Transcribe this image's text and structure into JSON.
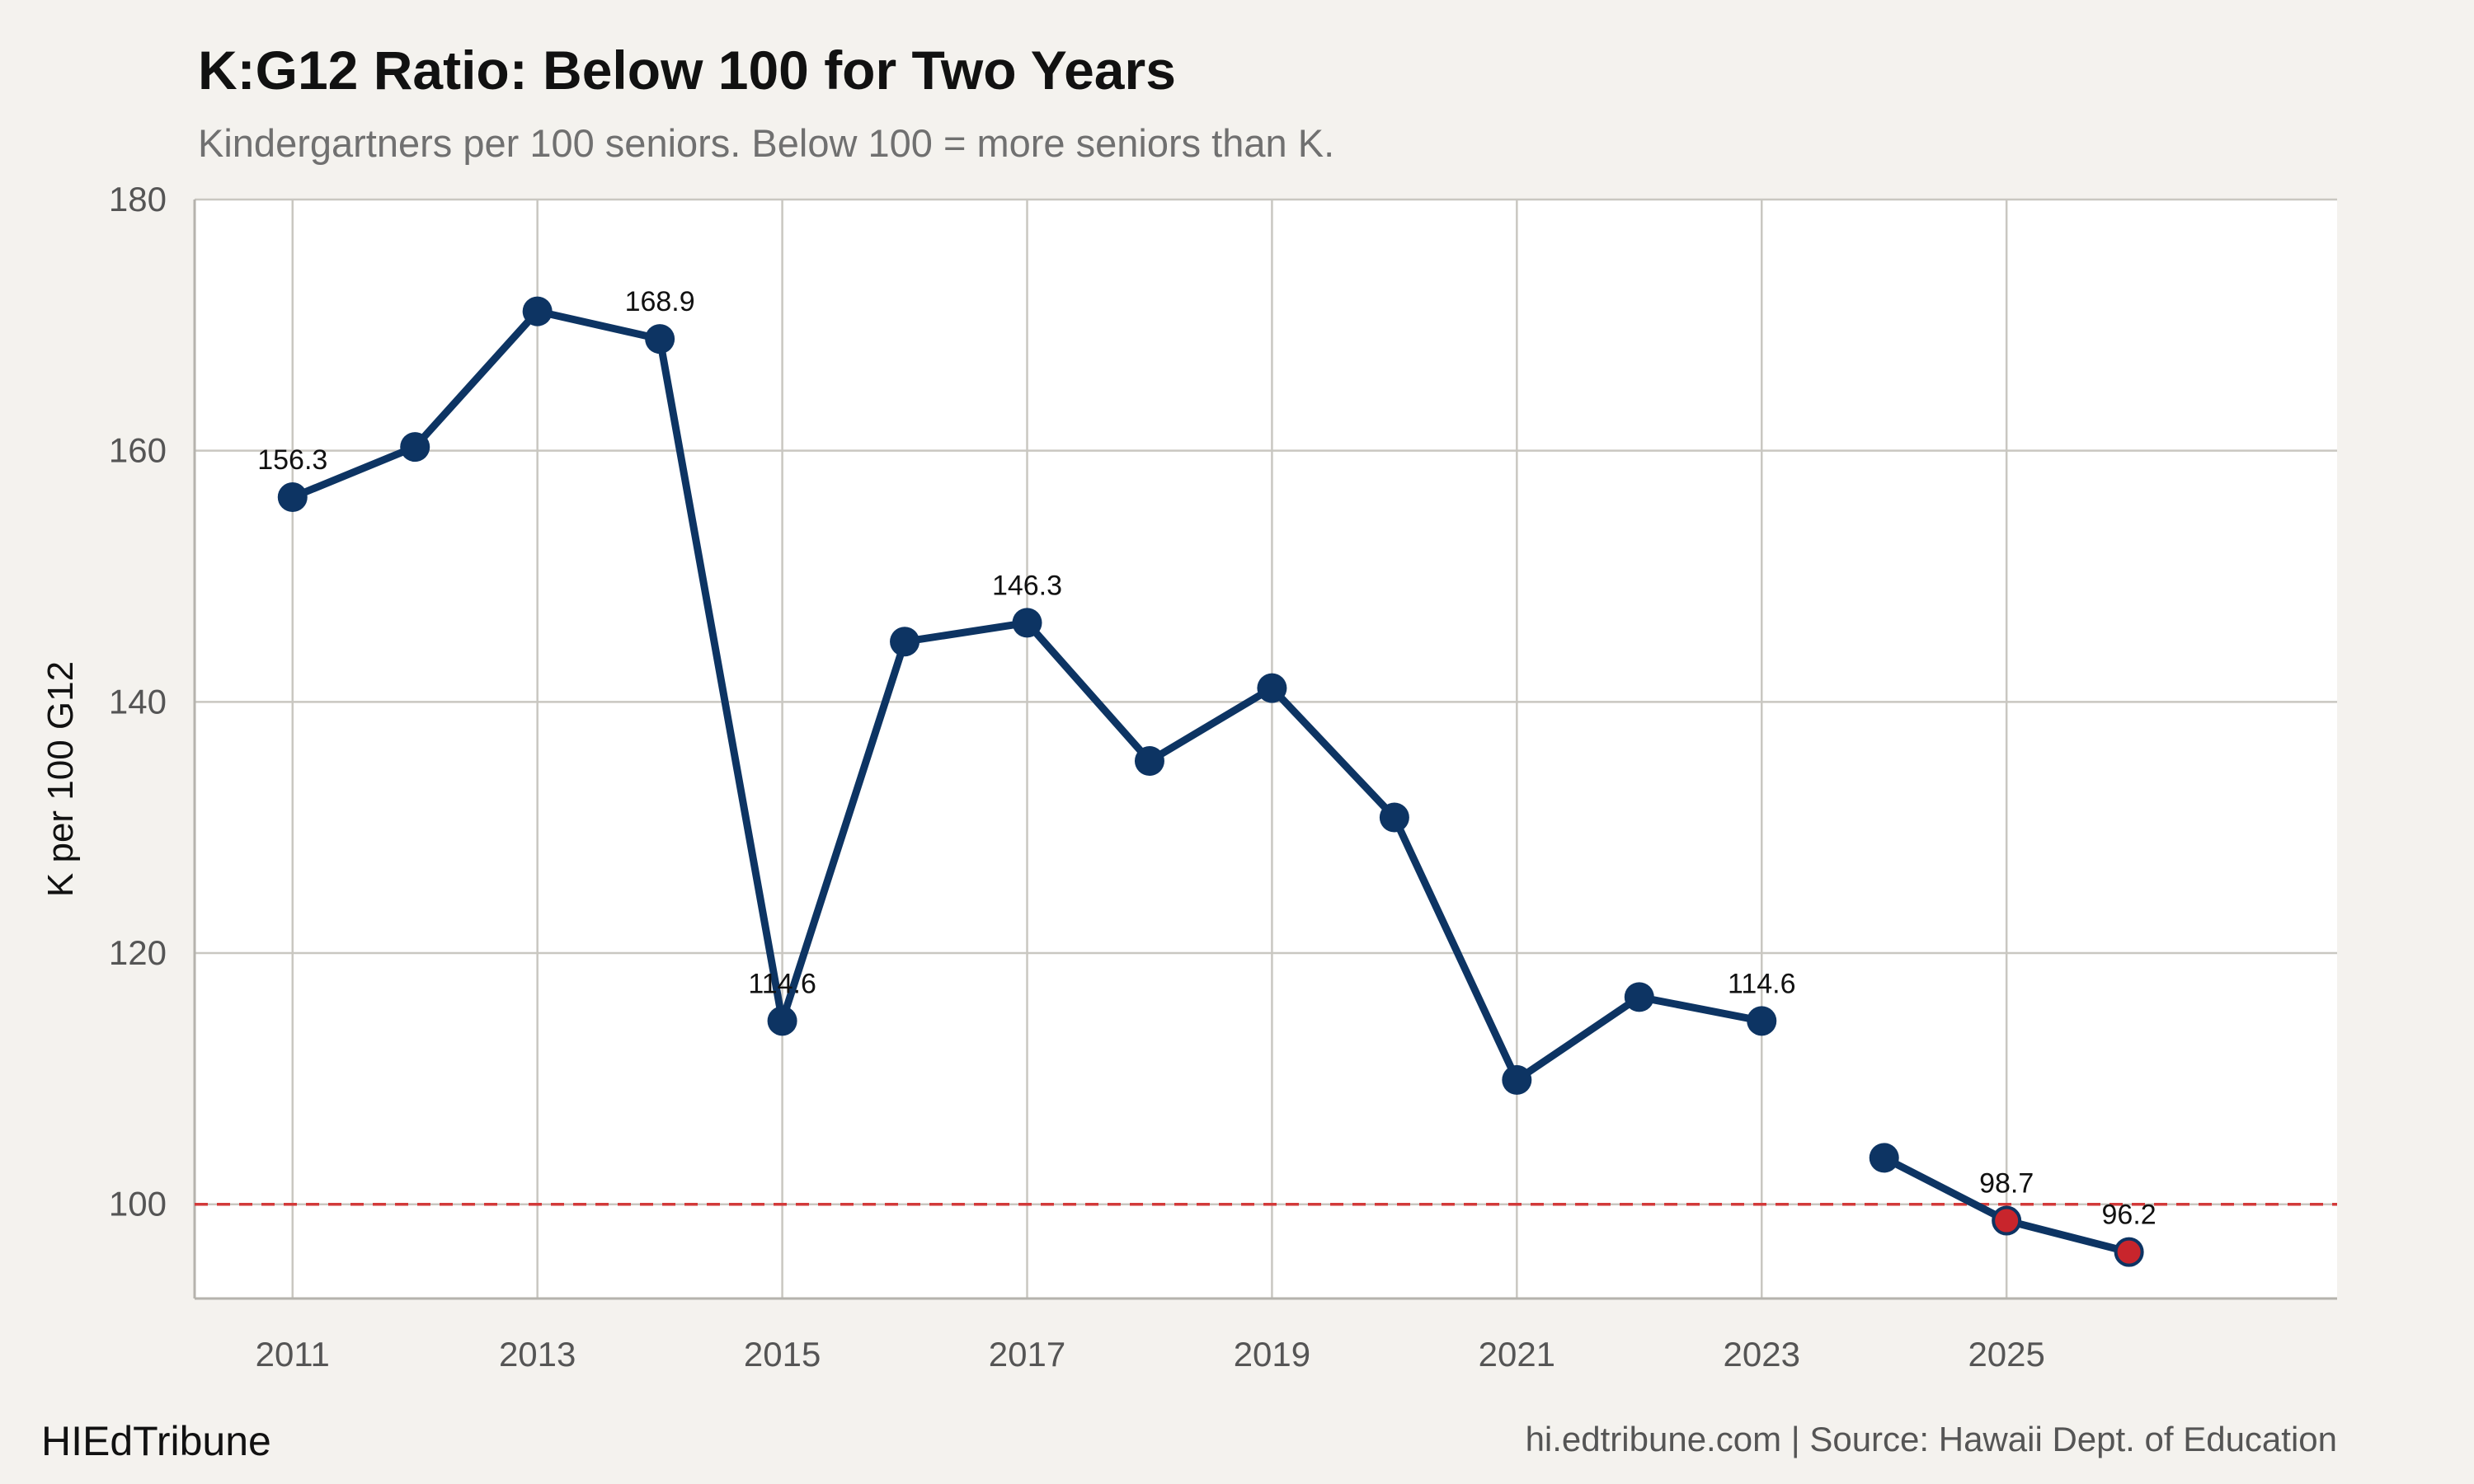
{
  "header": {
    "title": "K:G12 Ratio: Below 100 for Two Years",
    "subtitle": "Kindergartners per 100 seniors. Below 100 = more seniors than K."
  },
  "footer": {
    "brand": "HIEdTribune",
    "source": "hi.edtribune.com | Source: Hawaii Dept. of Education"
  },
  "colors": {
    "line": "#0d3463",
    "highlight": "#c8252c",
    "reference": "#d23a3a",
    "background": "#f4f2ee",
    "plot_background": "#ffffff"
  },
  "chart_data": {
    "type": "line",
    "title": "K:G12 Ratio: Below 100 for Two Years",
    "subtitle": "Kindergartners per 100 seniors. Below 100 = more seniors than K.",
    "xlabel": "",
    "ylabel": "K per 100 G12",
    "xlim": [
      2010.2,
      2027.7
    ],
    "ylim": [
      92.5,
      180
    ],
    "x_ticks": [
      2011,
      2013,
      2015,
      2017,
      2019,
      2021,
      2023,
      2025
    ],
    "y_ticks": [
      100,
      120,
      140,
      160,
      180
    ],
    "grid": true,
    "legend": "none",
    "reference_line": {
      "y": 100,
      "style": "dashed"
    },
    "segments": [
      [
        {
          "x": 2011,
          "y": 156.3
        },
        {
          "x": 2012,
          "y": 160.3
        },
        {
          "x": 2013,
          "y": 171.1
        },
        {
          "x": 2014,
          "y": 168.9
        },
        {
          "x": 2015,
          "y": 114.6
        },
        {
          "x": 2016,
          "y": 144.8
        },
        {
          "x": 2017,
          "y": 146.3
        },
        {
          "x": 2018,
          "y": 135.3
        },
        {
          "x": 2019,
          "y": 141.1
        },
        {
          "x": 2020,
          "y": 130.8
        },
        {
          "x": 2021,
          "y": 109.9
        },
        {
          "x": 2022,
          "y": 116.5
        },
        {
          "x": 2023,
          "y": 114.6
        }
      ],
      [
        {
          "x": 2024,
          "y": 103.7
        },
        {
          "x": 2025,
          "y": 98.7
        },
        {
          "x": 2026,
          "y": 96.2
        }
      ]
    ],
    "highlighted_points": [
      2025,
      2026
    ],
    "data_labels": [
      {
        "x": 2011,
        "y": 156.3,
        "text": "156.3"
      },
      {
        "x": 2014,
        "y": 168.9,
        "text": "168.9"
      },
      {
        "x": 2015,
        "y": 114.6,
        "text": "114.6"
      },
      {
        "x": 2017,
        "y": 146.3,
        "text": "146.3"
      },
      {
        "x": 2023,
        "y": 114.6,
        "text": "114.6"
      },
      {
        "x": 2025,
        "y": 98.7,
        "text": "98.7"
      },
      {
        "x": 2026,
        "y": 96.2,
        "text": "96.2"
      }
    ]
  }
}
